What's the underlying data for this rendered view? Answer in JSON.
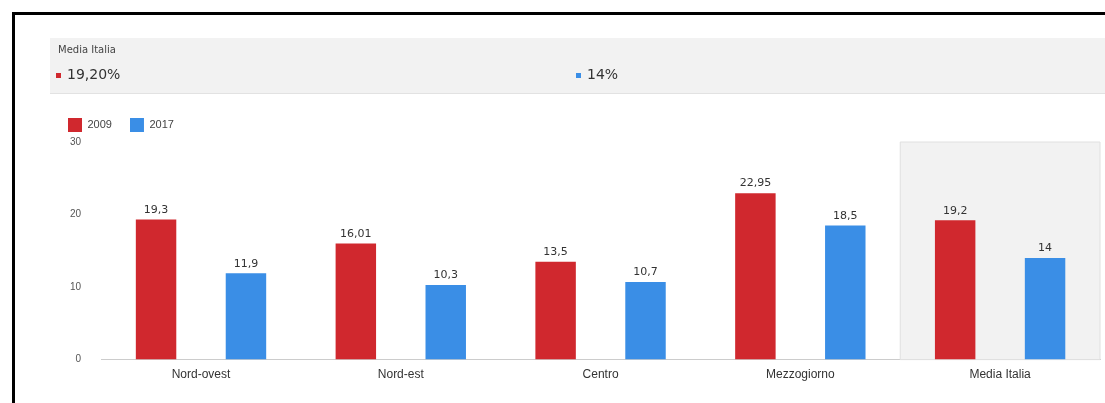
{
  "chart_data": {
    "type": "bar",
    "categories": [
      "Nord-ovest",
      "Nord-est",
      "Centro",
      "Mezzogiorno",
      "Media Italia"
    ],
    "series": [
      {
        "name": "2009",
        "color": "#d0282e",
        "values": [
          19.3,
          16.01,
          13.5,
          22.95,
          19.2
        ],
        "value_labels": [
          "19,3",
          "16,01",
          "13,5",
          "22,95",
          "19,2"
        ]
      },
      {
        "name": "2017",
        "color": "#3a8ee6",
        "values": [
          11.9,
          10.3,
          10.7,
          18.5,
          14
        ],
        "value_labels": [
          "11,9",
          "10,3",
          "10,7",
          "18,5",
          "14"
        ]
      }
    ],
    "ylim": [
      0,
      30
    ],
    "yticks": [
      0,
      10,
      20,
      30
    ],
    "grid": false,
    "legend": "top left",
    "bands": [
      {
        "axis": "x",
        "from": "Media Italia",
        "to": "Media Italia",
        "color": "#f2f2f2"
      }
    ],
    "annotations": [
      "Media Italia",
      "19,20%",
      "14%"
    ]
  }
}
